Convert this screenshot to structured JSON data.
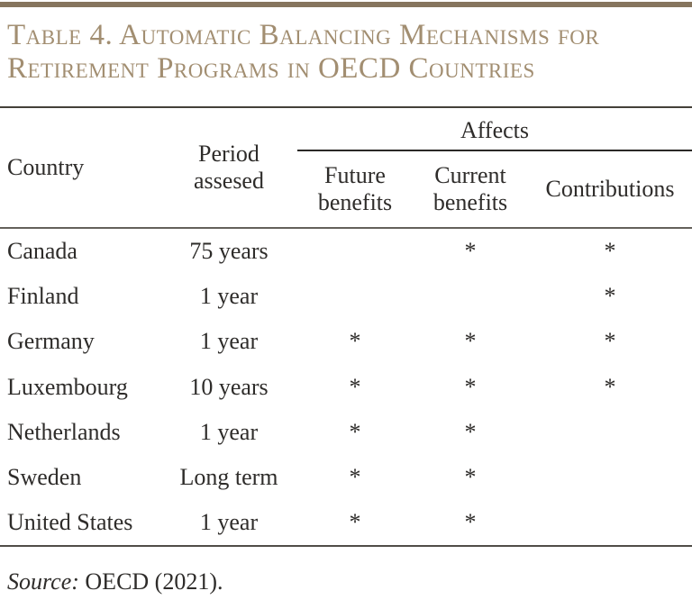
{
  "title": {
    "line1": "Table 4. Automatic Balancing Mechanisms for",
    "line2": "Retirement Programs in OECD Countries",
    "text_color": "#a28e71",
    "bar_color": "#86755e"
  },
  "table": {
    "headers": {
      "country": "Country",
      "period": "Period assesed",
      "affects": "Affects",
      "future": "Future benefits",
      "current": "Current benefits",
      "contributions": "Contributions"
    },
    "rows": [
      {
        "country": "Canada",
        "period": "75 years",
        "future": "",
        "current": "*",
        "contributions": "*"
      },
      {
        "country": "Finland",
        "period": "1 year",
        "future": "",
        "current": "",
        "contributions": "*"
      },
      {
        "country": "Germany",
        "period": "1 year",
        "future": "*",
        "current": "*",
        "contributions": "*"
      },
      {
        "country": "Luxembourg",
        "period": "10 years",
        "future": "*",
        "current": "*",
        "contributions": "*"
      },
      {
        "country": "Netherlands",
        "period": "1 year",
        "future": "*",
        "current": "*",
        "contributions": ""
      },
      {
        "country": "Sweden",
        "period": "Long term",
        "future": "*",
        "current": "*",
        "contributions": ""
      },
      {
        "country": "United States",
        "period": "1 year",
        "future": "*",
        "current": "*",
        "contributions": ""
      }
    ]
  },
  "source": {
    "label": "Source:",
    "text": " OECD (2021)."
  }
}
